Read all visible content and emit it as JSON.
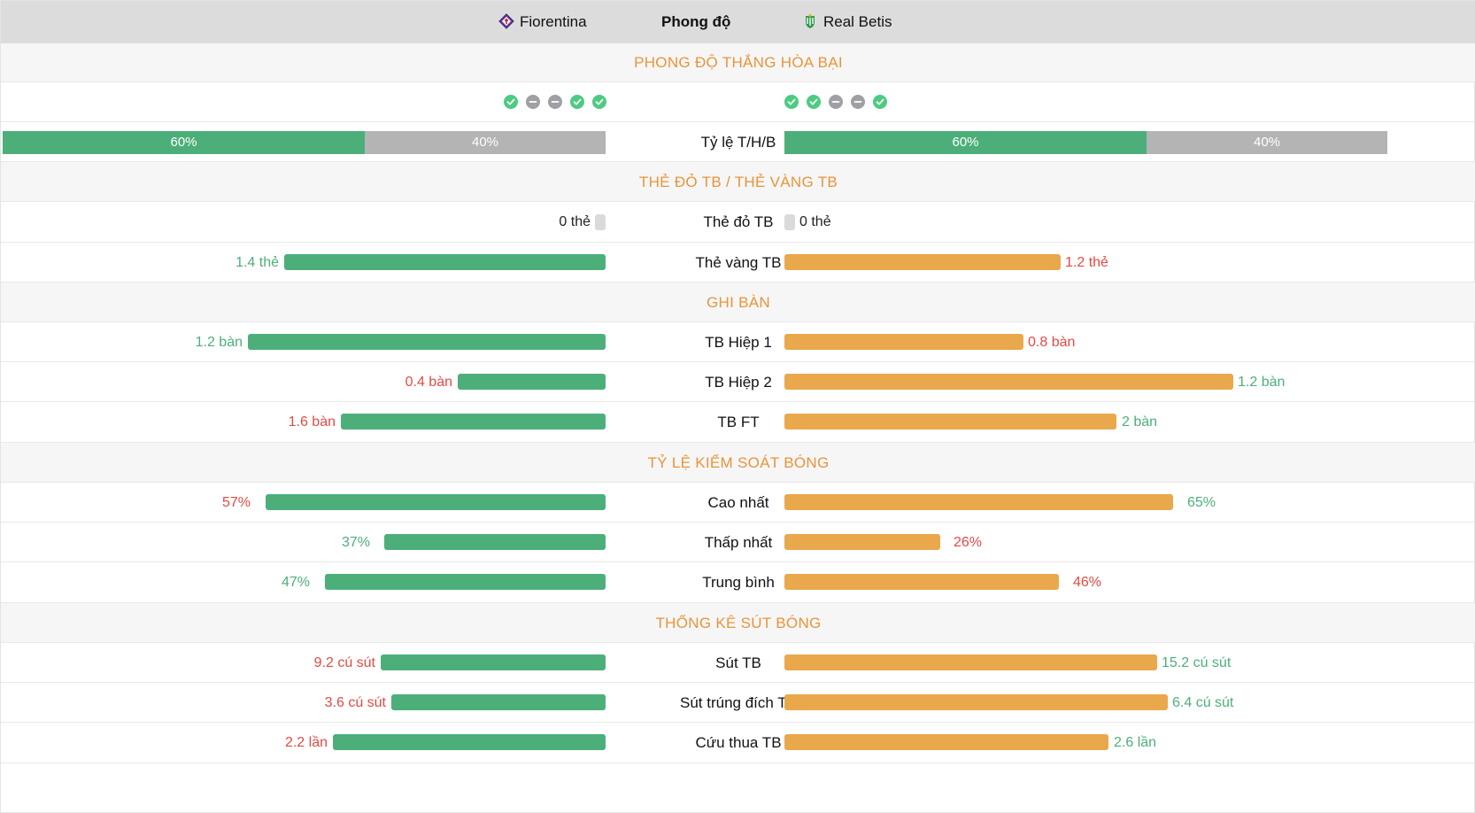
{
  "header": {
    "home_team": "Fiorentina",
    "center": "Phong độ",
    "away_team": "Real Betis",
    "home_logo_icon": "fiorentina-logo-icon",
    "away_logo_icon": "real-betis-logo-icon"
  },
  "colors": {
    "home_bar": "#4caf7a",
    "away_bar": "#e9a84c",
    "section_title": "#e8943a",
    "value_green": "#4caf7a",
    "value_red": "#e24a44"
  },
  "form": {
    "title": "PHONG ĐỘ THẮNG HÒA BẠI",
    "home_results": [
      "win",
      "draw",
      "draw",
      "win",
      "win"
    ],
    "away_results": [
      "win",
      "win",
      "draw",
      "draw",
      "win"
    ],
    "ratio_label": "Tỷ lệ T/H/B",
    "home_win_pct": "60%",
    "home_other_pct": "40%",
    "away_win_pct": "60%",
    "away_other_pct": "40%",
    "home_win_fraction": 0.6,
    "away_win_fraction": 0.6
  },
  "cards": {
    "title": "THẺ ĐỎ TB / THẺ VÀNG TB",
    "red_label": "Thẻ đỏ TB",
    "home_red": "0 thẻ",
    "away_red": "0 thẻ",
    "yellow_label": "Thẻ vàng TB",
    "home_yellow": "1.4 thẻ",
    "away_yellow": "1.2 thẻ"
  },
  "goals": {
    "title": "GHI BÀN",
    "rows": [
      {
        "label": "TB Hiệp 1",
        "home": "1.2 bàn",
        "away": "0.8 bàn"
      },
      {
        "label": "TB Hiệp 2",
        "home": "0.4 bàn",
        "away": "1.2 bàn"
      },
      {
        "label": "TB FT",
        "home": "1.6 bàn",
        "away": "2 bàn"
      }
    ]
  },
  "possession": {
    "title": "TỶ LỆ KIỂM SOÁT BÓNG",
    "rows": [
      {
        "label": "Cao nhất",
        "home": "57%",
        "away": "65%"
      },
      {
        "label": "Thấp nhất",
        "home": "37%",
        "away": "26%"
      },
      {
        "label": "Trung bình",
        "home": "47%",
        "away": "46%"
      }
    ]
  },
  "shots": {
    "title": "THỐNG KÊ SÚT BÓNG",
    "rows": [
      {
        "label": "Sút TB",
        "home": "9.2 cú sút",
        "away": "15.2 cú sút"
      },
      {
        "label": "Sút trúng đích TB",
        "home": "3.6 cú sút",
        "away": "6.4 cú sút"
      },
      {
        "label": "Cứu thua TB",
        "home": "2.2 lần",
        "away": "2.6 lần"
      }
    ]
  }
}
